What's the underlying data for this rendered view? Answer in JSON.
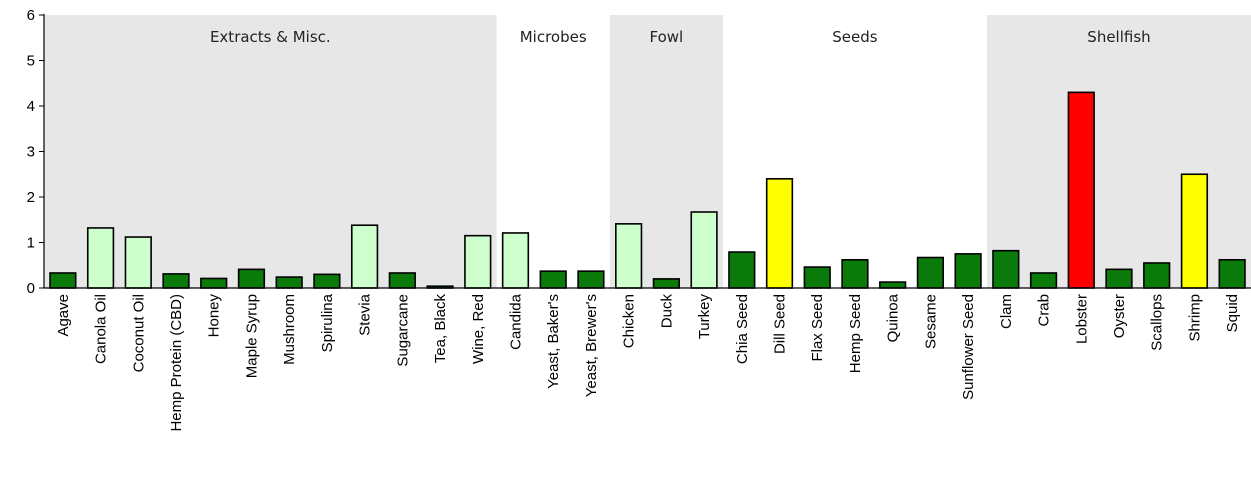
{
  "chart_data": {
    "type": "bar",
    "ylim": [
      0,
      6
    ],
    "yticks": [
      0,
      1,
      2,
      3,
      4,
      5,
      6
    ],
    "grid": false,
    "groups": [
      {
        "label": "Extracts & Misc.",
        "start": 0,
        "end": 11,
        "shaded": true
      },
      {
        "label": "Microbes",
        "start": 12,
        "end": 14,
        "shaded": false
      },
      {
        "label": "Fowl",
        "start": 15,
        "end": 17,
        "shaded": true
      },
      {
        "label": "Seeds",
        "start": 18,
        "end": 24,
        "shaded": false
      },
      {
        "label": "Shellfish",
        "start": 25,
        "end": 31,
        "shaded": true
      }
    ],
    "categories": [
      "Agave",
      "Canola Oil",
      "Coconut Oil",
      "Hemp Protein (CBD)",
      "Honey",
      "Maple Syrup",
      "Mushroom",
      "Spirulina",
      "Stevia",
      "Sugarcane",
      "Tea, Black",
      "Wine, Red",
      "Candida",
      "Yeast, Baker's",
      "Yeast, Brewer's",
      "Chicken",
      "Duck",
      "Turkey",
      "Chia Seed",
      "Dill Seed",
      "Flax Seed",
      "Hemp Seed",
      "Quinoa",
      "Sesame",
      "Sunflower Seed",
      "Clam",
      "Crab",
      "Lobster",
      "Oyster",
      "Scallops",
      "Shrimp",
      "Squid"
    ],
    "values": [
      0.33,
      1.32,
      1.12,
      0.31,
      0.21,
      0.41,
      0.24,
      0.3,
      1.38,
      0.33,
      0.04,
      1.15,
      1.21,
      0.37,
      0.37,
      1.41,
      0.2,
      1.67,
      0.79,
      2.4,
      0.46,
      0.62,
      0.13,
      0.67,
      0.75,
      0.82,
      0.33,
      4.3,
      0.41,
      0.55,
      2.5,
      0.62
    ],
    "colors": [
      "#0a7a0a",
      "#ccffcc",
      "#ccffcc",
      "#0a7a0a",
      "#0a7a0a",
      "#0a7a0a",
      "#0a7a0a",
      "#0a7a0a",
      "#ccffcc",
      "#0a7a0a",
      "#0a7a0a",
      "#ccffcc",
      "#ccffcc",
      "#0a7a0a",
      "#0a7a0a",
      "#ccffcc",
      "#0a7a0a",
      "#ccffcc",
      "#0a7a0a",
      "#ffff00",
      "#0a7a0a",
      "#0a7a0a",
      "#0a7a0a",
      "#0a7a0a",
      "#0a7a0a",
      "#0a7a0a",
      "#0a7a0a",
      "#ff0000",
      "#0a7a0a",
      "#0a7a0a",
      "#ffff00",
      "#0a7a0a"
    ],
    "shade_color": "#e7e7e7"
  }
}
